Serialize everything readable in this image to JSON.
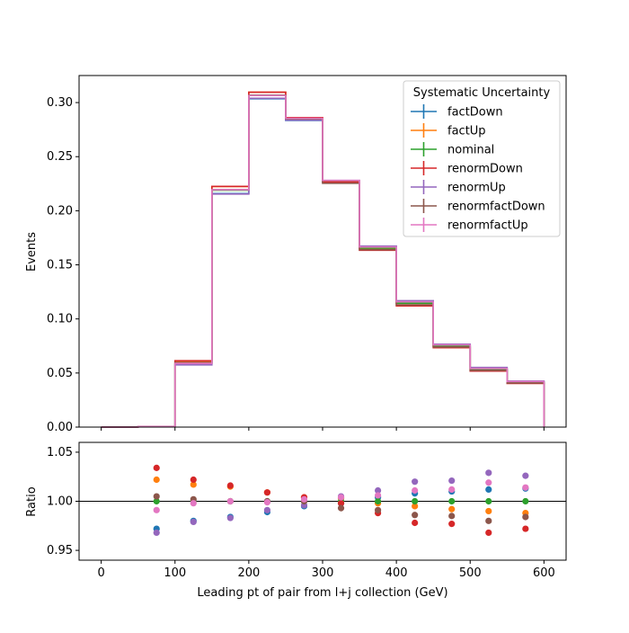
{
  "chart_data": [
    {
      "type": "line",
      "panel": "main",
      "ylabel": "Events",
      "ylim": [
        0,
        0.325
      ],
      "yticks": [
        0.0,
        0.05,
        0.1,
        0.15,
        0.2,
        0.25,
        0.3
      ],
      "ytick_labels": [
        "0.00",
        "0.05",
        "0.10",
        "0.15",
        "0.20",
        "0.25",
        "0.30"
      ],
      "xlim": [
        -30,
        630
      ],
      "bin_edges": [
        0,
        50,
        100,
        150,
        200,
        250,
        300,
        350,
        400,
        450,
        500,
        550,
        600
      ],
      "legend": {
        "title": "Systematic Uncertainty",
        "placement": "upper right"
      },
      "series": [
        {
          "name": "factDown",
          "color": "#1f77b4",
          "values": [
            0.0,
            0.0005,
            0.0589,
            0.2159,
            0.3035,
            0.2835,
            0.2266,
            0.1661,
            0.1158,
            0.0759,
            0.0547,
            0.042
          ]
        },
        {
          "name": "factUp",
          "color": "#ff7f0e",
          "values": [
            0.0,
            0.0005,
            0.0606,
            0.2224,
            0.3096,
            0.2861,
            0.2276,
            0.1652,
            0.1143,
            0.0746,
            0.0532,
            0.041
          ]
        },
        {
          "name": "nominal",
          "color": "#2ca02c",
          "values": [
            0.0,
            0.0005,
            0.0594,
            0.219,
            0.3068,
            0.285,
            0.227,
            0.1655,
            0.1145,
            0.0751,
            0.0535,
            0.0415
          ]
        },
        {
          "name": "renormDown",
          "color": "#d62728",
          "values": [
            0.0,
            0.0005,
            0.0614,
            0.2225,
            0.3096,
            0.2861,
            0.2266,
            0.1635,
            0.112,
            0.0734,
            0.0518,
            0.0404
          ]
        },
        {
          "name": "renormUp",
          "color": "#9467bd",
          "values": [
            0.0,
            0.0005,
            0.0575,
            0.2154,
            0.304,
            0.2838,
            0.228,
            0.1673,
            0.1168,
            0.0766,
            0.0551,
            0.0426
          ]
        },
        {
          "name": "renormfactDown",
          "color": "#8c564b",
          "values": [
            0.0,
            0.0005,
            0.0597,
            0.2195,
            0.3068,
            0.285,
            0.2254,
            0.164,
            0.113,
            0.074,
            0.0524,
            0.0408
          ]
        },
        {
          "name": "renormfactUp",
          "color": "#e377c2",
          "values": [
            0.0,
            0.0005,
            0.0589,
            0.2194,
            0.3065,
            0.2855,
            0.228,
            0.1665,
            0.1158,
            0.076,
            0.0542,
            0.0421
          ]
        }
      ]
    },
    {
      "type": "scatter",
      "panel": "ratio",
      "xlabel": "Leading pt of pair from l+j collection (GeV)",
      "ylabel": "Ratio",
      "ylim": [
        0.94,
        1.06
      ],
      "yticks": [
        0.95,
        1.0,
        1.05
      ],
      "ytick_labels": [
        "0.95",
        "1.00",
        "1.05"
      ],
      "xticks": [
        0,
        100,
        200,
        300,
        400,
        500,
        600
      ],
      "xtick_labels": [
        "0",
        "100",
        "200",
        "300",
        "400",
        "500",
        "600"
      ],
      "reference_line": 1.0,
      "x": [
        75,
        125,
        175,
        225,
        275,
        325,
        375,
        425,
        475,
        525,
        575
      ],
      "series": [
        {
          "name": "factDown",
          "color": "#1f77b4",
          "values": [
            0.972,
            0.98,
            0.984,
            0.989,
            0.995,
            0.998,
            1.004,
            1.008,
            1.01,
            1.012,
            1.013
          ]
        },
        {
          "name": "factUp",
          "color": "#ff7f0e",
          "values": [
            1.022,
            1.017,
            1.015,
            1.009,
            1.004,
            1.003,
            0.998,
            0.995,
            0.992,
            0.99,
            0.988
          ]
        },
        {
          "name": "nominal",
          "color": "#2ca02c",
          "values": [
            1.0,
            1.0,
            1.0,
            1.0,
            1.0,
            1.0,
            1.0,
            1.0,
            1.0,
            1.0,
            1.0
          ]
        },
        {
          "name": "renormDown",
          "color": "#d62728",
          "values": [
            1.034,
            1.022,
            1.016,
            1.009,
            1.004,
            0.998,
            0.988,
            0.978,
            0.977,
            0.968,
            0.972
          ]
        },
        {
          "name": "renormUp",
          "color": "#9467bd",
          "values": [
            0.968,
            0.979,
            0.983,
            0.991,
            0.996,
            1.005,
            1.011,
            1.02,
            1.021,
            1.029,
            1.026
          ]
        },
        {
          "name": "renormfactDown",
          "color": "#8c564b",
          "values": [
            1.005,
            1.002,
            1.0,
            1.0,
            1.0,
            0.993,
            0.991,
            0.986,
            0.985,
            0.98,
            0.984
          ]
        },
        {
          "name": "renormfactUp",
          "color": "#e377c2",
          "values": [
            0.991,
            0.998,
            1.0,
            0.999,
            1.002,
            1.004,
            1.006,
            1.011,
            1.012,
            1.019,
            1.014
          ]
        }
      ]
    }
  ]
}
